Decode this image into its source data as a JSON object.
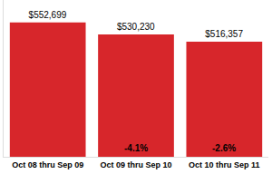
{
  "chart_data": {
    "type": "bar",
    "categories": [
      "Oct 08 thru Sep 09",
      "Oct 09 thru Sep 10",
      "Oct 10 thru Sep 11"
    ],
    "values": [
      552699,
      530230,
      516357
    ],
    "value_labels": [
      "$552,699",
      "$530,230",
      "$516,357"
    ],
    "change": [
      null,
      -4.1,
      -2.6
    ],
    "change_labels": [
      null,
      "-4.1%",
      "-2.6%"
    ],
    "color": "#d7262b",
    "ylim": [
      300000,
      595000
    ],
    "yticks": [],
    "grid": false,
    "data_labels": true,
    "tick_labels": "x"
  }
}
